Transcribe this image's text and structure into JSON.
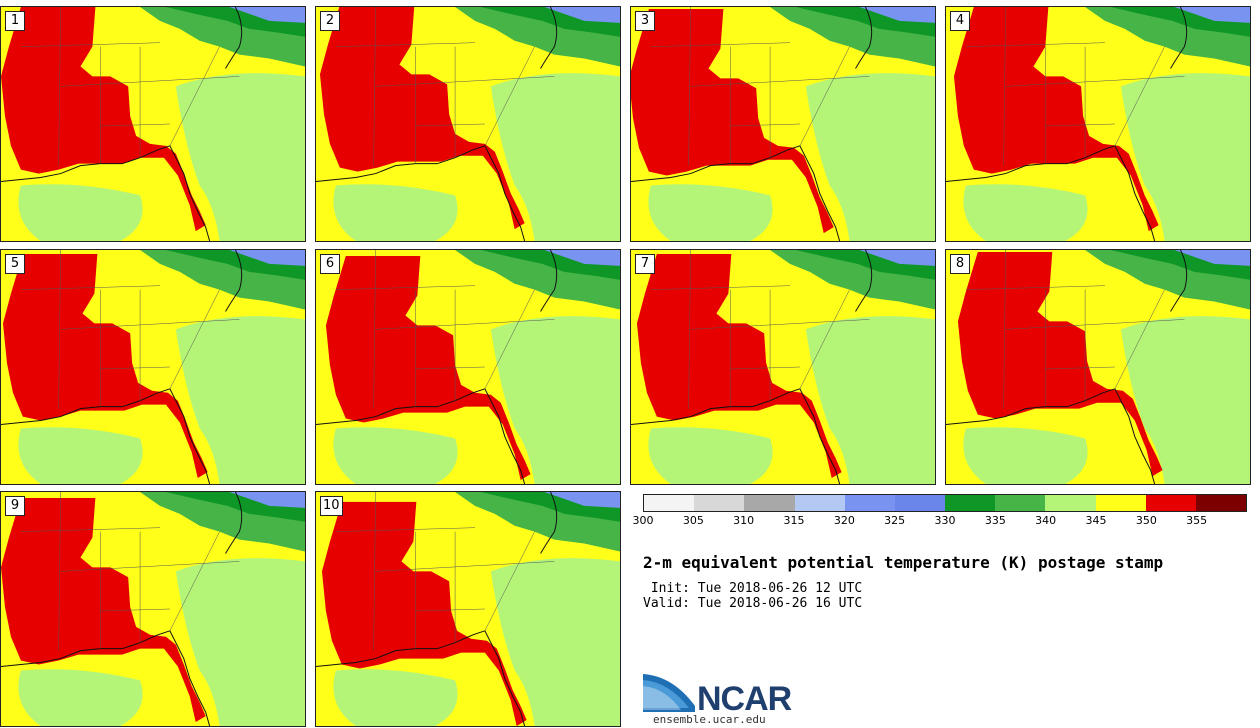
{
  "panels": [
    {
      "number": "1"
    },
    {
      "number": "2"
    },
    {
      "number": "3"
    },
    {
      "number": "4"
    },
    {
      "number": "5"
    },
    {
      "number": "6"
    },
    {
      "number": "7"
    },
    {
      "number": "8"
    },
    {
      "number": "9"
    },
    {
      "number": "10"
    }
  ],
  "colorbar": {
    "colors": [
      "#f4f4f4",
      "#d8d8d8",
      "#a8a8a8",
      "#b4c8f4",
      "#7894f0",
      "#6a86ea",
      "#0e9626",
      "#46b446",
      "#b4f578",
      "#ffff1a",
      "#e60000",
      "#7d0000"
    ],
    "tick_labels": [
      "300",
      "305",
      "310",
      "315",
      "320",
      "325",
      "330",
      "335",
      "340",
      "345",
      "350",
      "355"
    ]
  },
  "map_colors": {
    "base": "#b4f578",
    "warm": "#ffff1a",
    "hot": "#e60000",
    "cool": "#46b446",
    "cold": "#0e9626",
    "colder": "#7894f0"
  },
  "title": "2-m equivalent potential temperature (K) postage stamp",
  "init_line": " Init: Tue 2018-06-26 12 UTC",
  "valid_line": "Valid: Tue 2018-06-26 16 UTC",
  "logo": {
    "text": "NCAR",
    "url": "ensemble.ucar.edu"
  }
}
